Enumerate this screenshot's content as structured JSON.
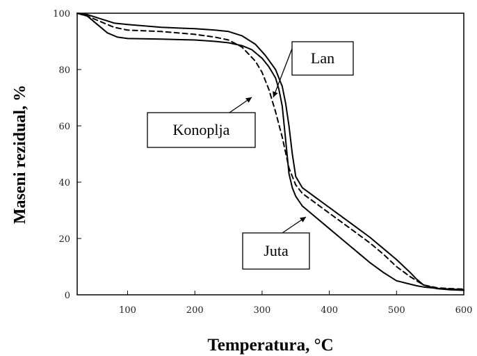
{
  "chart_data": {
    "type": "line",
    "title": "",
    "xlabel": "Temperatura, °C",
    "ylabel": "Maseni rezidual, %",
    "xlim": [
      25,
      600
    ],
    "ylim": [
      0,
      100
    ],
    "x_ticks": [
      100,
      200,
      300,
      400,
      500,
      600
    ],
    "y_ticks": [
      0,
      20,
      40,
      60,
      80,
      100
    ],
    "grid": false,
    "series": [
      {
        "name": "Lan",
        "style": "solid",
        "color": "#000000",
        "x": [
          25,
          40,
          60,
          80,
          100,
          150,
          200,
          230,
          250,
          270,
          290,
          305,
          320,
          330,
          335,
          340,
          345,
          350,
          360,
          380,
          400,
          420,
          440,
          460,
          480,
          500,
          520,
          530,
          540,
          560,
          580,
          600
        ],
        "y": [
          100,
          99.5,
          98,
          96.5,
          96,
          95,
          94.5,
          94,
          93.5,
          92,
          89,
          85,
          80,
          74,
          68,
          60,
          50,
          42,
          38,
          34.5,
          31,
          27.5,
          24,
          20.5,
          16.5,
          12.5,
          8,
          5.5,
          3.5,
          2.2,
          1.8,
          1.6
        ]
      },
      {
        "name": "Konoplja",
        "style": "dashed",
        "color": "#000000",
        "x": [
          25,
          40,
          60,
          80,
          100,
          150,
          200,
          230,
          250,
          270,
          290,
          300,
          310,
          320,
          330,
          340,
          350,
          360,
          380,
          400,
          420,
          440,
          460,
          480,
          500,
          520,
          530,
          540,
          560,
          580,
          600
        ],
        "y": [
          100,
          99,
          97,
          95,
          94,
          93.5,
          92.5,
          91.5,
          90.5,
          88,
          83,
          79,
          73,
          65,
          56,
          45,
          39,
          36,
          32.5,
          29,
          25.5,
          22,
          18.5,
          14.5,
          10,
          6.5,
          5,
          3.5,
          2.5,
          2.2,
          2
        ]
      },
      {
        "name": "Juta",
        "style": "solid",
        "color": "#000000",
        "x": [
          25,
          40,
          55,
          70,
          85,
          100,
          150,
          200,
          230,
          250,
          270,
          285,
          300,
          310,
          320,
          325,
          330,
          335,
          340,
          345,
          350,
          360,
          380,
          400,
          420,
          440,
          460,
          480,
          500,
          520,
          530,
          540,
          560,
          580,
          600
        ],
        "y": [
          100,
          99,
          96,
          93,
          91.5,
          91,
          90.8,
          90.5,
          90,
          89.5,
          88.5,
          87,
          84,
          81,
          77,
          73,
          67,
          55,
          43,
          38,
          35,
          31.5,
          27.5,
          23.5,
          19.5,
          15.5,
          11.5,
          8,
          5,
          3.8,
          3.2,
          2.8,
          2.3,
          2,
          1.8
        ]
      }
    ],
    "labels": [
      {
        "text": "Lan",
        "series": "Lan"
      },
      {
        "text": "Konoplja",
        "series": "Konoplja"
      },
      {
        "text": "Juta",
        "series": "Juta"
      }
    ]
  }
}
